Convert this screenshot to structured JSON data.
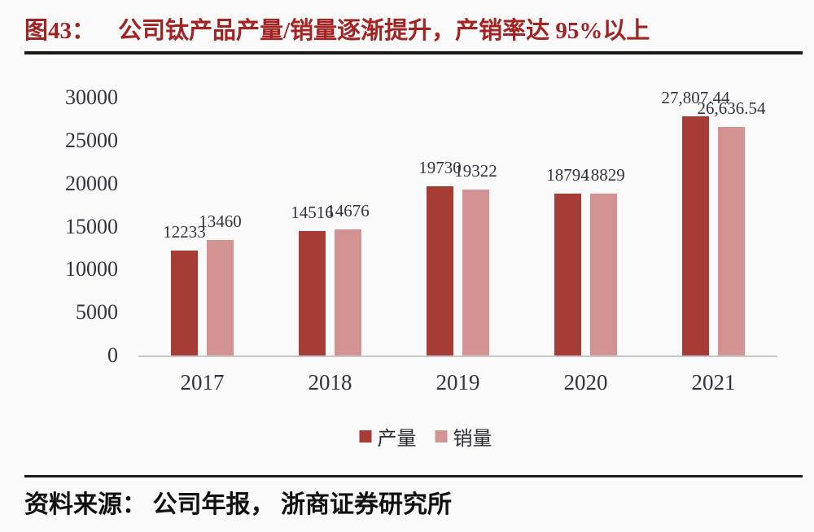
{
  "figure": {
    "number": "图43：",
    "title": "公司钛产品产量/销量逐渐提升，产销率达 95%以上"
  },
  "chart_data": {
    "type": "bar",
    "title": "公司钛产品产量/销量逐渐提升，产销率达95%以上",
    "categories": [
      "2017",
      "2018",
      "2019",
      "2020",
      "2021"
    ],
    "series": [
      {
        "name": "产量",
        "color": "#A63C36",
        "values": [
          12233,
          14516,
          19730,
          18794,
          27807.44
        ],
        "value_labels": [
          "12233",
          "14516",
          "19730",
          "18794",
          "27,807.44"
        ]
      },
      {
        "name": "销量",
        "color": "#D29392",
        "values": [
          13460,
          14676,
          19322,
          18829,
          26636.54
        ],
        "value_labels": [
          "13460",
          "14676",
          "19322",
          "18829",
          "26,636.54"
        ]
      }
    ],
    "ylim": [
      0,
      30000
    ],
    "yticks": [
      0,
      5000,
      10000,
      15000,
      20000,
      25000,
      30000
    ],
    "xlabel": "",
    "ylabel": "",
    "grid": false,
    "legend_position": "bottom"
  },
  "source": {
    "text": "资料来源： 公司年报， 浙商证券研究所"
  },
  "colors": {
    "title_red": "#A32222",
    "bar_production": "#A63C36",
    "bar_sales": "#D29392",
    "axis_line": "#C8C8C8",
    "label_text": "#333340",
    "rule_black": "#1A1A1A",
    "background": "#FAFAFB"
  }
}
